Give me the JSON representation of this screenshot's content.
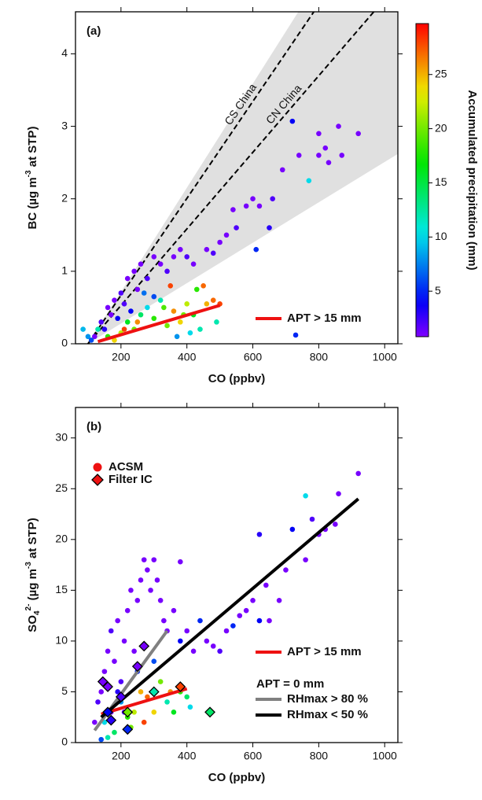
{
  "chart_data": [
    {
      "type": "scatter",
      "panel_label": "(a)",
      "xlabel": "CO (ppbv)",
      "ylabel_parts": [
        "BC (µg m",
        "-3",
        " at STP)"
      ],
      "xlim": [
        62,
        1040
      ],
      "ylim": [
        0,
        4.58
      ],
      "xticks": [
        200,
        400,
        600,
        800,
        1000
      ],
      "yticks": [
        0,
        1,
        2,
        3,
        4
      ],
      "colorbar": {
        "label": "Accumulated precipitation (mm)",
        "clim": [
          0.8,
          29.7
        ],
        "ticks": [
          5,
          10,
          15,
          20,
          25
        ]
      },
      "reference_band": {
        "x": [
          100,
          738,
          1040,
          1040
        ],
        "y": [
          0,
          4.58,
          4.58,
          2.62
        ],
        "color": "#e0e0e0"
      },
      "reference_lines": [
        {
          "name": "CS China",
          "x": [
            100,
            785
          ],
          "y": [
            0,
            4.58
          ]
        },
        {
          "name": "CN China",
          "x": [
            100,
            967
          ],
          "y": [
            0,
            4.58
          ]
        }
      ],
      "fits": [
        {
          "name": "APT > 15 mm",
          "color": "#ee1111",
          "x": [
            130,
            500
          ],
          "y": [
            0.03,
            0.53
          ]
        }
      ],
      "points": [
        [
          120,
          0.1,
          1
        ],
        [
          140,
          0.3,
          2
        ],
        [
          160,
          0.5,
          1
        ],
        [
          180,
          0.6,
          1
        ],
        [
          200,
          0.7,
          2
        ],
        [
          220,
          0.9,
          1
        ],
        [
          240,
          1.0,
          1
        ],
        [
          260,
          1.1,
          1
        ],
        [
          280,
          0.9,
          2
        ],
        [
          300,
          1.2,
          1
        ],
        [
          320,
          1.1,
          1
        ],
        [
          150,
          0.2,
          3
        ],
        [
          170,
          0.4,
          1
        ],
        [
          190,
          0.35,
          4
        ],
        [
          210,
          0.55,
          2
        ],
        [
          250,
          0.75,
          1
        ],
        [
          340,
          1.0,
          2
        ],
        [
          360,
          1.2,
          1
        ],
        [
          380,
          1.3,
          1
        ],
        [
          400,
          1.2,
          2
        ],
        [
          420,
          1.1,
          1
        ],
        [
          460,
          1.3,
          1
        ],
        [
          480,
          1.25,
          2
        ],
        [
          500,
          1.4,
          1
        ],
        [
          520,
          1.5,
          1
        ],
        [
          550,
          1.6,
          2
        ],
        [
          580,
          1.9,
          1
        ],
        [
          600,
          2.0,
          1
        ],
        [
          620,
          1.9,
          1
        ],
        [
          660,
          2.0,
          2
        ],
        [
          690,
          2.4,
          1
        ],
        [
          740,
          2.6,
          1
        ],
        [
          800,
          2.9,
          1
        ],
        [
          820,
          2.7,
          1
        ],
        [
          860,
          3.0,
          1
        ],
        [
          830,
          2.5,
          1
        ],
        [
          920,
          2.9,
          1
        ],
        [
          870,
          2.6,
          1
        ],
        [
          800,
          2.6,
          1
        ],
        [
          720,
          3.07,
          4
        ],
        [
          770,
          2.25,
          10
        ],
        [
          610,
          1.3,
          5
        ],
        [
          650,
          1.6,
          3
        ],
        [
          730,
          0.12,
          5
        ],
        [
          540,
          1.85,
          1
        ],
        [
          100,
          0.1,
          8
        ],
        [
          130,
          0.2,
          12
        ],
        [
          160,
          0.1,
          18
        ],
        [
          180,
          0.05,
          24
        ],
        [
          200,
          0.15,
          22
        ],
        [
          220,
          0.3,
          16
        ],
        [
          240,
          0.2,
          20
        ],
        [
          260,
          0.4,
          14
        ],
        [
          280,
          0.5,
          10
        ],
        [
          300,
          0.35,
          18
        ],
        [
          320,
          0.6,
          12
        ],
        [
          340,
          0.25,
          20
        ],
        [
          360,
          0.45,
          26
        ],
        [
          380,
          0.3,
          24
        ],
        [
          400,
          0.55,
          22
        ],
        [
          420,
          0.4,
          16
        ],
        [
          440,
          0.2,
          12
        ],
        [
          460,
          0.55,
          25
        ],
        [
          480,
          0.6,
          27
        ],
        [
          500,
          0.55,
          28
        ],
        [
          490,
          0.3,
          12
        ],
        [
          450,
          0.8,
          27
        ],
        [
          350,
          0.8,
          28
        ],
        [
          370,
          0.1,
          8
        ],
        [
          300,
          0.65,
          6
        ],
        [
          250,
          0.3,
          26
        ],
        [
          210,
          0.2,
          28
        ],
        [
          330,
          0.5,
          19
        ],
        [
          410,
          0.15,
          10
        ],
        [
          230,
          0.45,
          4
        ],
        [
          85,
          0.2,
          9
        ],
        [
          110,
          0.05,
          6
        ],
        [
          270,
          0.7,
          7
        ],
        [
          390,
          0.4,
          20
        ],
        [
          430,
          0.75,
          18
        ]
      ]
    },
    {
      "type": "scatter",
      "panel_label": "(b)",
      "xlabel": "CO (ppbv)",
      "ylabel_parts": [
        "SO",
        "4",
        "2-",
        " (µg m",
        "-3",
        " at STP)"
      ],
      "xlim": [
        62,
        1040
      ],
      "ylim": [
        0,
        33
      ],
      "xticks": [
        200,
        400,
        600,
        800,
        1000
      ],
      "yticks": [
        0,
        5,
        10,
        15,
        20,
        25,
        30
      ],
      "legend_markers": [
        {
          "name": "ACSM",
          "marker": "circle",
          "color": "#ee1111"
        },
        {
          "name": "Filter IC",
          "marker": "diamond",
          "color": "#ee1111"
        }
      ],
      "legend_note": "APT = 0 mm",
      "fits": [
        {
          "name": "APT > 15 mm",
          "color": "#ee1111",
          "x": [
            140,
            400
          ],
          "y": [
            2.8,
            5.3
          ]
        },
        {
          "name": "RHmax > 80 %",
          "color": "#808080",
          "x": [
            120,
            340
          ],
          "y": [
            1.2,
            11
          ]
        },
        {
          "name": "RHmax < 50 %",
          "color": "#000000",
          "x": [
            140,
            920
          ],
          "y": [
            2.5,
            24
          ]
        }
      ],
      "points": [
        [
          120,
          2,
          1
        ],
        [
          140,
          5,
          1
        ],
        [
          150,
          7,
          1
        ],
        [
          160,
          9,
          1
        ],
        [
          170,
          11,
          2
        ],
        [
          180,
          8,
          1
        ],
        [
          190,
          12,
          1
        ],
        [
          200,
          6,
          2
        ],
        [
          210,
          10,
          1
        ],
        [
          220,
          13,
          1
        ],
        [
          230,
          15,
          1
        ],
        [
          240,
          9,
          1
        ],
        [
          250,
          14,
          1
        ],
        [
          260,
          16,
          1
        ],
        [
          270,
          18,
          1
        ],
        [
          280,
          17,
          1
        ],
        [
          290,
          15,
          1
        ],
        [
          300,
          18,
          1
        ],
        [
          310,
          16,
          1
        ],
        [
          320,
          14,
          1
        ],
        [
          330,
          12,
          1
        ],
        [
          340,
          11,
          1
        ],
        [
          360,
          13,
          1
        ],
        [
          380,
          17.8,
          1
        ],
        [
          400,
          11,
          1
        ],
        [
          420,
          9,
          1
        ],
        [
          460,
          10,
          1
        ],
        [
          480,
          9.5,
          1
        ],
        [
          500,
          9,
          2
        ],
        [
          520,
          11,
          1
        ],
        [
          560,
          12.5,
          1
        ],
        [
          580,
          13,
          1
        ],
        [
          600,
          14,
          1
        ],
        [
          640,
          15.5,
          1
        ],
        [
          680,
          14,
          1
        ],
        [
          700,
          17,
          1
        ],
        [
          760,
          18,
          1
        ],
        [
          800,
          20.5,
          1
        ],
        [
          820,
          21,
          1
        ],
        [
          860,
          24.5,
          1
        ],
        [
          920,
          26.5,
          1
        ],
        [
          850,
          21.5,
          1
        ],
        [
          780,
          22,
          2
        ],
        [
          650,
          12,
          1
        ],
        [
          130,
          4,
          2
        ],
        [
          170,
          3,
          1
        ],
        [
          190,
          5,
          3
        ],
        [
          210,
          3,
          2
        ],
        [
          620,
          20.5,
          3
        ],
        [
          720,
          21,
          4
        ],
        [
          760,
          24.3,
          10
        ],
        [
          620,
          12,
          4
        ],
        [
          440,
          12,
          5
        ],
        [
          540,
          11.5,
          5
        ],
        [
          380,
          10,
          4
        ],
        [
          300,
          8,
          6
        ],
        [
          250,
          7,
          5
        ],
        [
          200,
          4,
          8
        ],
        [
          150,
          2,
          10
        ],
        [
          180,
          1,
          14
        ],
        [
          220,
          2.5,
          18
        ],
        [
          240,
          3,
          22
        ],
        [
          260,
          5,
          25
        ],
        [
          280,
          4.5,
          27
        ],
        [
          300,
          3,
          24
        ],
        [
          320,
          6,
          20
        ],
        [
          340,
          4,
          12
        ],
        [
          360,
          3,
          16
        ],
        [
          380,
          5,
          18
        ],
        [
          400,
          4.5,
          14
        ],
        [
          410,
          3.5,
          10
        ],
        [
          160,
          0.5,
          12
        ],
        [
          140,
          0.3,
          6
        ],
        [
          230,
          1.5,
          20
        ],
        [
          270,
          2,
          28
        ],
        [
          350,
          5,
          26
        ]
      ],
      "filter_points": [
        [
          145,
          6,
          1
        ],
        [
          160,
          5.5,
          1
        ],
        [
          270,
          9.5,
          1
        ],
        [
          250,
          7.5,
          1
        ],
        [
          300,
          5,
          12
        ],
        [
          380,
          5.5,
          28
        ],
        [
          470,
          3,
          14
        ],
        [
          220,
          1.3,
          5
        ],
        [
          170,
          2.2,
          3
        ],
        [
          220,
          3,
          20
        ],
        [
          160,
          3,
          4
        ],
        [
          200,
          4.5,
          2
        ]
      ]
    }
  ]
}
